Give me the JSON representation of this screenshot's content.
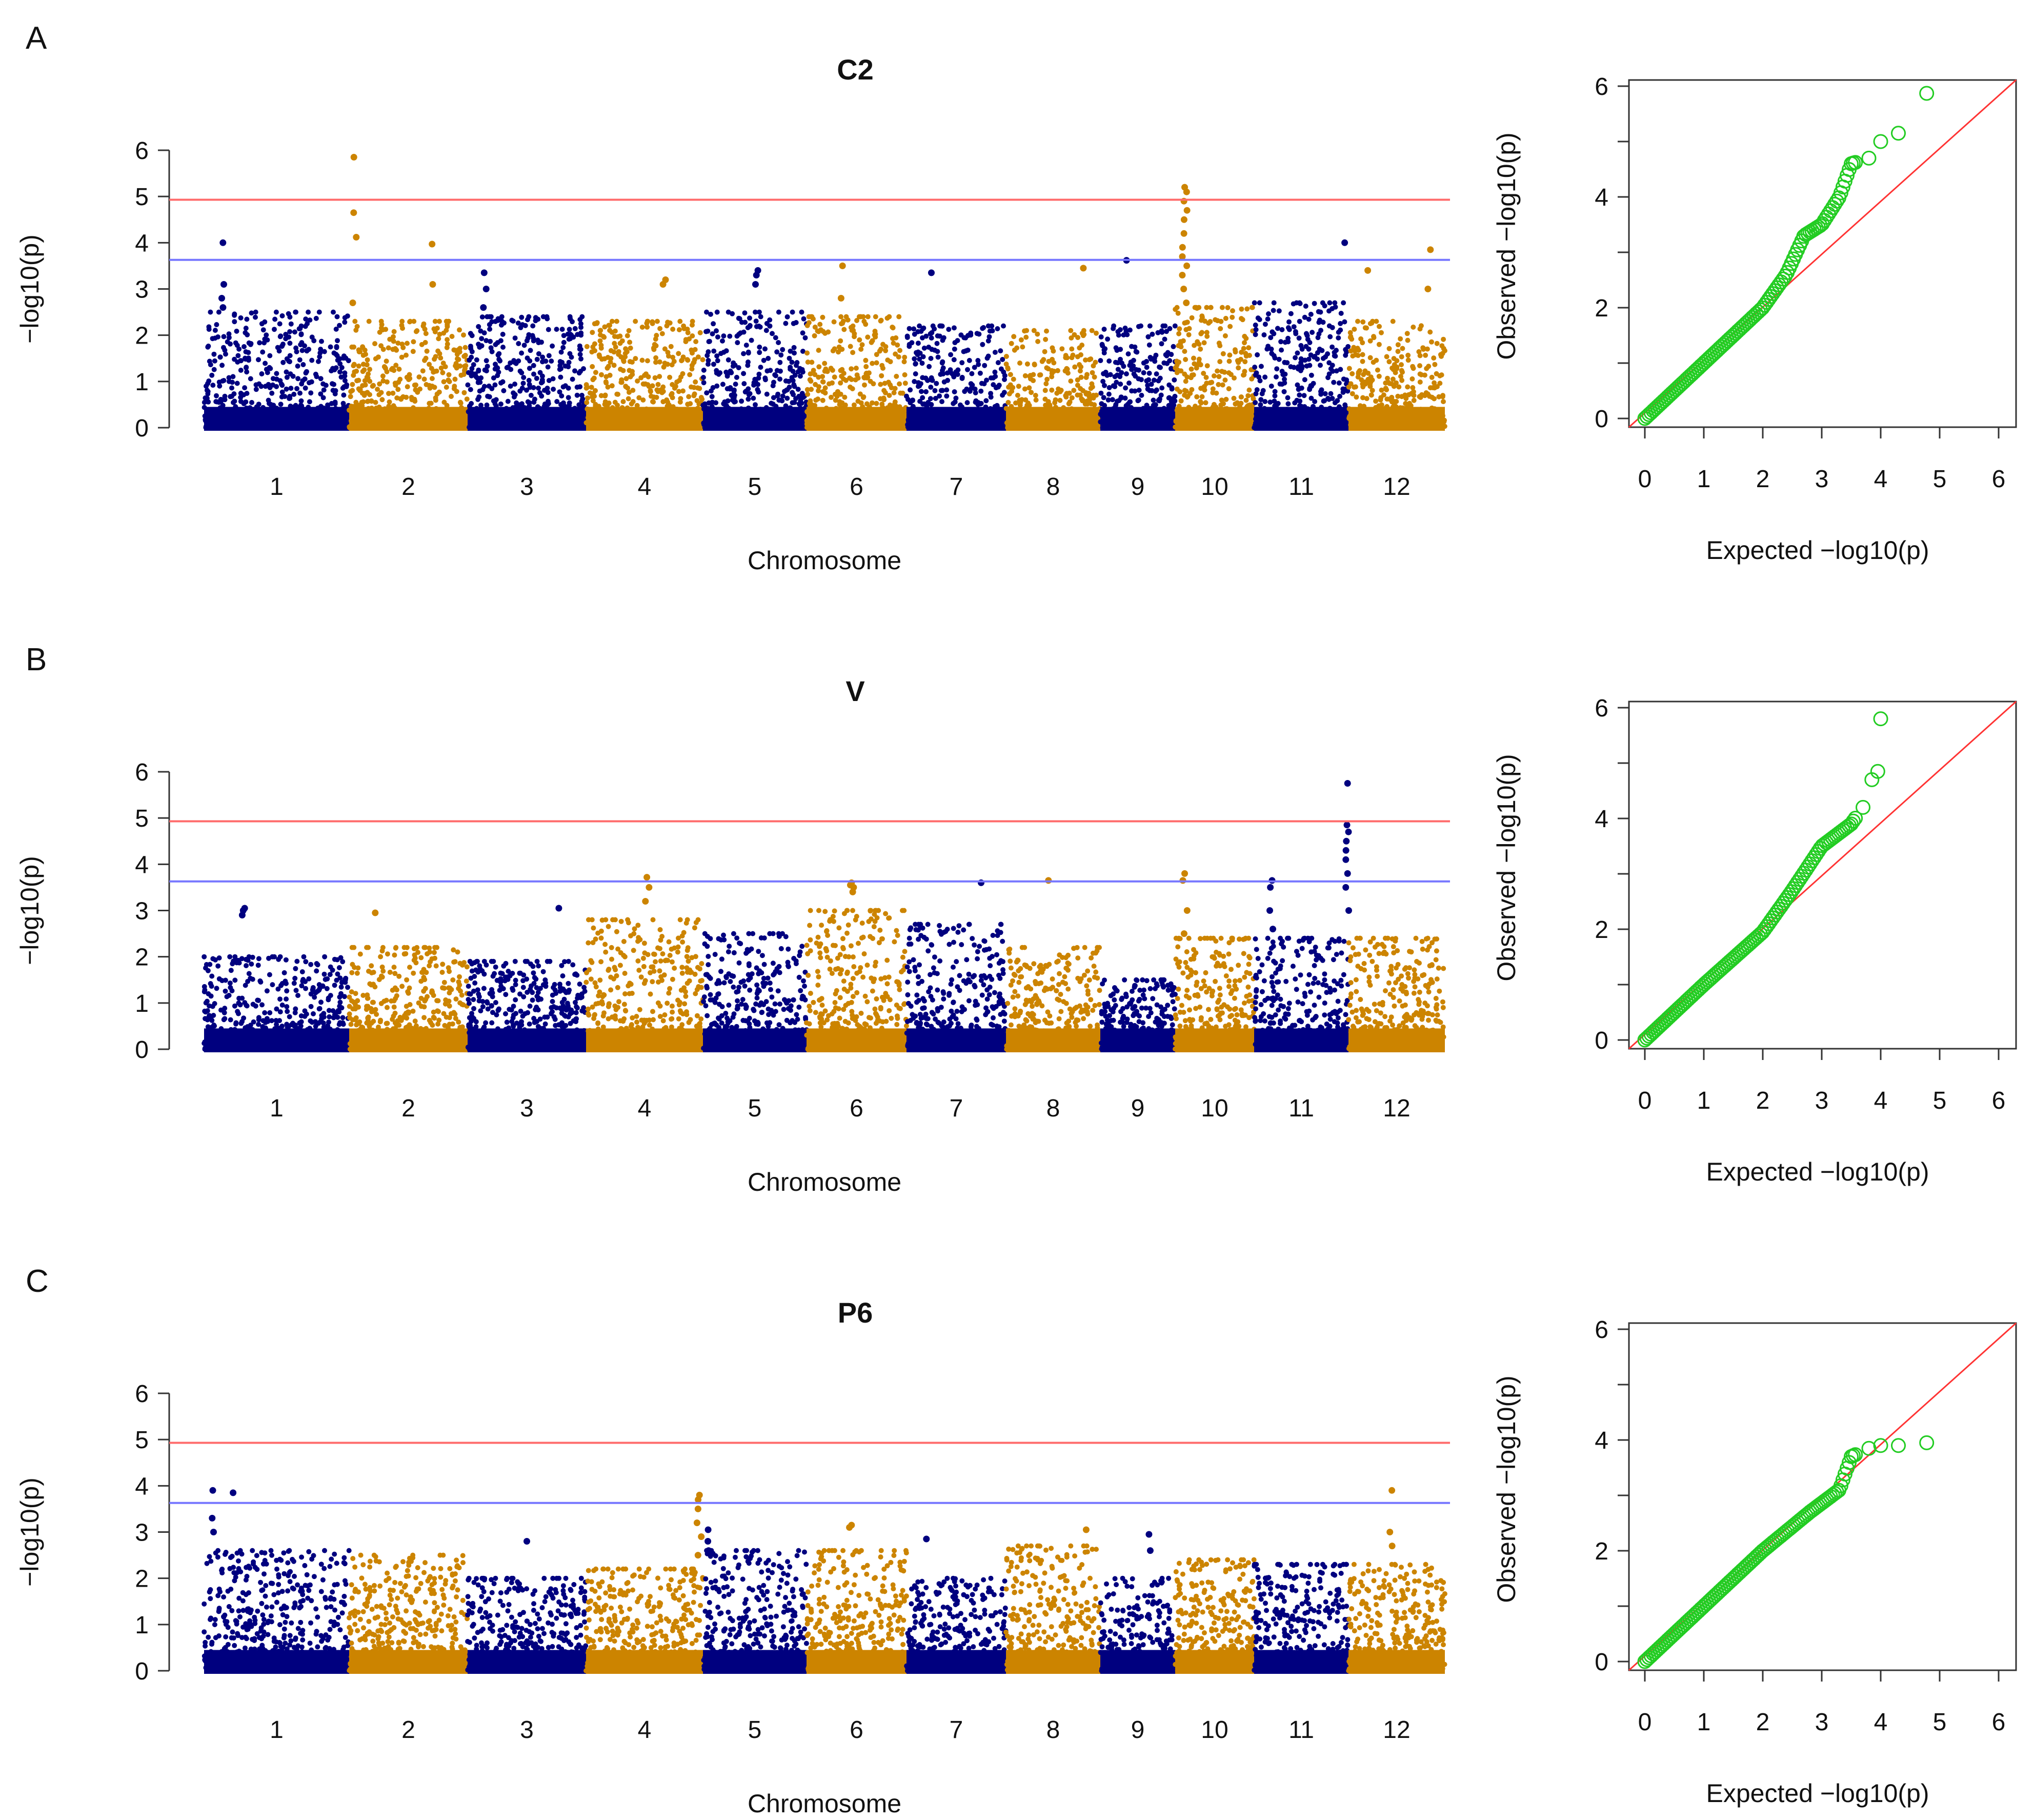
{
  "colors": {
    "odd_chr": "#00007f",
    "even_chr": "#cc8400",
    "genomewide_line": "#ff6b6b",
    "suggestive_line": "#7777ff",
    "qq_points": "#22cc22",
    "qq_diagonal": "#ff3333",
    "axis": "#333333"
  },
  "panels": [
    {
      "letter": "A",
      "manhattan_title": "C2",
      "manhattan_xlabel": "Chromosome",
      "manhattan_ylabel": "−log10(p)",
      "qq_xlabel": "Expected −log10(p)",
      "qq_ylabel": "Observed −log10(p)"
    },
    {
      "letter": "B",
      "manhattan_title": "V",
      "manhattan_xlabel": "Chromosome",
      "manhattan_ylabel": "−log10(p)",
      "qq_xlabel": "Expected −log10(p)",
      "qq_ylabel": "Observed −log10(p)"
    },
    {
      "letter": "C",
      "manhattan_title": "P6",
      "manhattan_xlabel": "Chromosome",
      "manhattan_ylabel": "−log10(p)",
      "qq_xlabel": "Expected −log10(p)",
      "qq_ylabel": "Observed −log10(p)"
    }
  ],
  "chart_data": [
    {
      "type": "scatter",
      "kind": "manhattan",
      "panel": "A",
      "title": "C2",
      "xlabel": "Chromosome",
      "ylabel": "−log10(p)",
      "ylim": [
        0,
        6
      ],
      "yticks": [
        0,
        1,
        2,
        3,
        4,
        5,
        6
      ],
      "categories": [
        "1",
        "2",
        "3",
        "4",
        "5",
        "6",
        "7",
        "8",
        "9",
        "10",
        "11",
        "12"
      ],
      "thresholds": {
        "genomewide": 4.93,
        "suggestive": 3.63
      },
      "background_max": [
        2.5,
        2.3,
        2.4,
        2.3,
        2.5,
        2.4,
        2.2,
        2.1,
        2.2,
        2.6,
        2.7,
        2.3
      ],
      "peaks": [
        {
          "chr": 1,
          "pos": 0.13,
          "values": [
            4.0,
            3.1,
            2.8,
            2.6
          ]
        },
        {
          "chr": 2,
          "pos": 0.04,
          "values": [
            5.85,
            4.65,
            4.12,
            2.7
          ]
        },
        {
          "chr": 2,
          "pos": 0.7,
          "values": [
            3.97,
            3.1
          ]
        },
        {
          "chr": 3,
          "pos": 0.14,
          "values": [
            3.35,
            3.0,
            2.6
          ]
        },
        {
          "chr": 4,
          "pos": 0.68,
          "values": [
            3.2,
            3.1
          ]
        },
        {
          "chr": 5,
          "pos": 0.53,
          "values": [
            3.4,
            3.3,
            3.1
          ]
        },
        {
          "chr": 6,
          "pos": 0.36,
          "values": [
            3.5,
            2.8
          ]
        },
        {
          "chr": 7,
          "pos": 0.25,
          "values": [
            3.35
          ]
        },
        {
          "chr": 8,
          "pos": 0.82,
          "values": [
            3.45
          ]
        },
        {
          "chr": 9,
          "pos": 0.35,
          "values": [
            3.62
          ]
        },
        {
          "chr": 10,
          "pos": 0.12,
          "values": [
            5.2,
            5.1,
            4.9,
            4.7,
            4.5,
            4.2,
            3.9,
            3.7,
            3.5,
            3.3,
            3.0,
            2.7
          ]
        },
        {
          "chr": 11,
          "pos": 0.96,
          "values": [
            4.0
          ]
        },
        {
          "chr": 12,
          "pos": 0.2,
          "values": [
            3.4
          ]
        },
        {
          "chr": 12,
          "pos": 0.85,
          "values": [
            3.85,
            3.0
          ]
        }
      ]
    },
    {
      "type": "scatter",
      "kind": "qq",
      "panel": "A",
      "xlabel": "Expected −log10(p)",
      "ylabel": "Observed −log10(p)",
      "xlim": [
        0,
        6
      ],
      "ylim": [
        0,
        6
      ],
      "ticks": [
        0,
        1,
        2,
        3,
        4,
        5,
        6
      ],
      "max_expected": 4.78,
      "points": [
        [
          0,
          0
        ],
        [
          1,
          1.0
        ],
        [
          2,
          2.0
        ],
        [
          2.4,
          2.6
        ],
        [
          2.7,
          3.3
        ],
        [
          3.0,
          3.5
        ],
        [
          3.3,
          4.0
        ],
        [
          3.5,
          4.6
        ],
        [
          3.8,
          4.7
        ],
        [
          4.0,
          5.0
        ],
        [
          4.3,
          5.15
        ],
        [
          4.78,
          5.87
        ]
      ]
    },
    {
      "type": "scatter",
      "kind": "manhattan",
      "panel": "B",
      "title": "V",
      "xlabel": "Chromosome",
      "ylabel": "−log10(p)",
      "ylim": [
        0,
        6
      ],
      "yticks": [
        0,
        1,
        2,
        3,
        4,
        5,
        6
      ],
      "categories": [
        "1",
        "2",
        "3",
        "4",
        "5",
        "6",
        "7",
        "8",
        "9",
        "10",
        "11",
        "12"
      ],
      "thresholds": {
        "genomewide": 4.93,
        "suggestive": 3.63
      },
      "background_max": [
        2.0,
        2.2,
        1.9,
        2.8,
        2.5,
        3.0,
        2.7,
        2.2,
        1.5,
        2.4,
        2.4,
        2.4
      ],
      "peaks": [
        {
          "chr": 1,
          "pos": 0.28,
          "values": [
            3.05,
            3.0,
            2.9
          ]
        },
        {
          "chr": 2,
          "pos": 0.22,
          "values": [
            2.95
          ]
        },
        {
          "chr": 3,
          "pos": 0.77,
          "values": [
            3.05
          ]
        },
        {
          "chr": 4,
          "pos": 0.52,
          "values": [
            3.72,
            3.5,
            3.2
          ]
        },
        {
          "chr": 6,
          "pos": 0.45,
          "values": [
            3.6,
            3.55,
            3.5,
            3.4
          ]
        },
        {
          "chr": 7,
          "pos": 0.75,
          "values": [
            3.6
          ]
        },
        {
          "chr": 8,
          "pos": 0.45,
          "values": [
            3.65
          ]
        },
        {
          "chr": 10,
          "pos": 0.12,
          "values": [
            3.8,
            3.65,
            3.0,
            2.5
          ]
        },
        {
          "chr": 11,
          "pos": 0.19,
          "values": [
            3.65,
            3.5,
            3.0,
            2.6
          ]
        },
        {
          "chr": 11,
          "pos": 0.99,
          "values": [
            5.75,
            4.85,
            4.7,
            4.5,
            4.3,
            4.1,
            3.8,
            3.5,
            3.0
          ]
        }
      ]
    },
    {
      "type": "scatter",
      "kind": "qq",
      "panel": "B",
      "xlabel": "Expected −log10(p)",
      "ylabel": "Observed −log10(p)",
      "xlim": [
        0,
        6
      ],
      "ylim": [
        0,
        6
      ],
      "ticks": [
        0,
        1,
        2,
        3,
        4,
        5,
        6
      ],
      "max_expected": 4.0,
      "points": [
        [
          0,
          0
        ],
        [
          1,
          1.0
        ],
        [
          2,
          1.95
        ],
        [
          2.5,
          2.7
        ],
        [
          3.0,
          3.5
        ],
        [
          3.5,
          3.9
        ],
        [
          3.7,
          4.2
        ],
        [
          3.85,
          4.7
        ],
        [
          3.95,
          4.85
        ],
        [
          4.0,
          5.8
        ]
      ]
    },
    {
      "type": "scatter",
      "kind": "manhattan",
      "panel": "C",
      "title": "P6",
      "xlabel": "Chromosome",
      "ylabel": "−log10(p)",
      "ylim": [
        0,
        6
      ],
      "yticks": [
        0,
        1,
        2,
        3,
        4,
        5,
        6
      ],
      "categories": [
        "1",
        "2",
        "3",
        "4",
        "5",
        "6",
        "7",
        "8",
        "9",
        "10",
        "11",
        "12"
      ],
      "thresholds": {
        "genomewide": 4.93,
        "suggestive": 3.63
      },
      "background_max": [
        2.6,
        2.5,
        2.0,
        2.2,
        2.6,
        2.6,
        2.0,
        2.7,
        2.0,
        2.4,
        2.3,
        2.3
      ],
      "peaks": [
        {
          "chr": 1,
          "pos": 0.06,
          "values": [
            3.9,
            3.3,
            3.0
          ]
        },
        {
          "chr": 1,
          "pos": 0.2,
          "values": [
            3.85
          ]
        },
        {
          "chr": 3,
          "pos": 0.5,
          "values": [
            2.8
          ]
        },
        {
          "chr": 4,
          "pos": 0.97,
          "values": [
            3.8,
            3.7,
            3.5,
            3.2,
            2.9,
            2.5
          ]
        },
        {
          "chr": 5,
          "pos": 0.05,
          "values": [
            3.05,
            2.8,
            2.6
          ]
        },
        {
          "chr": 6,
          "pos": 0.45,
          "values": [
            3.15,
            3.1
          ]
        },
        {
          "chr": 7,
          "pos": 0.2,
          "values": [
            2.85
          ]
        },
        {
          "chr": 8,
          "pos": 0.85,
          "values": [
            3.05
          ]
        },
        {
          "chr": 9,
          "pos": 0.65,
          "values": [
            2.95,
            2.6
          ]
        },
        {
          "chr": 12,
          "pos": 0.45,
          "values": [
            3.9,
            3.0,
            2.7
          ]
        }
      ]
    },
    {
      "type": "scatter",
      "kind": "qq",
      "panel": "C",
      "xlabel": "Expected −log10(p)",
      "ylabel": "Observed −log10(p)",
      "xlim": [
        0,
        6
      ],
      "ylim": [
        0,
        6
      ],
      "ticks": [
        0,
        1,
        2,
        3,
        4,
        5,
        6
      ],
      "max_expected": 4.78,
      "points": [
        [
          0,
          0
        ],
        [
          1,
          1.0
        ],
        [
          2,
          2.0
        ],
        [
          2.8,
          2.7
        ],
        [
          3.3,
          3.1
        ],
        [
          3.5,
          3.7
        ],
        [
          3.8,
          3.85
        ],
        [
          4.0,
          3.9
        ],
        [
          4.3,
          3.9
        ],
        [
          4.78,
          3.95
        ]
      ]
    }
  ]
}
